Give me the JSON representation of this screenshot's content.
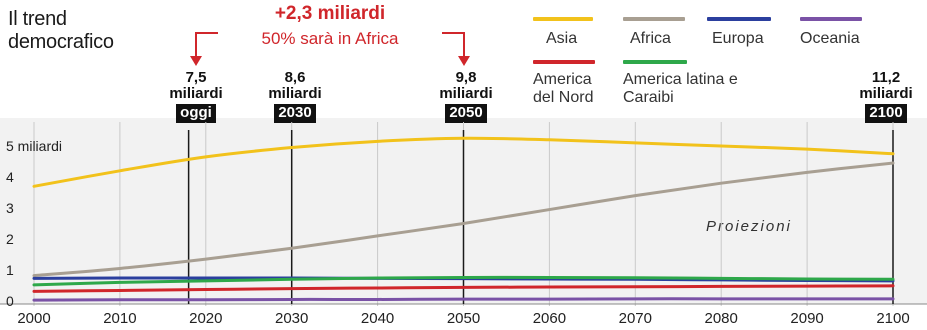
{
  "title": "Il trend democrafico",
  "annotation": {
    "headline": "+2,3 miliardi",
    "subtitle": "50% sarà in Africa"
  },
  "milestones": [
    {
      "year": 2018,
      "value": "7,5",
      "unit": "miliardi",
      "tag": "oggi"
    },
    {
      "year": 2030,
      "value": "8,6",
      "unit": "miliardi",
      "tag": "2030"
    },
    {
      "year": 2050,
      "value": "9,8",
      "unit": "miliardi",
      "tag": "2050"
    },
    {
      "year": 2100,
      "value": "11,2",
      "unit": "miliardi",
      "tag": "2100"
    }
  ],
  "projection_label": "Proiezioni",
  "legend": [
    {
      "name": "Asia",
      "color": "#f2c21b"
    },
    {
      "name": "Africa",
      "color": "#a89f92"
    },
    {
      "name": "Europa",
      "color": "#2b3f9e"
    },
    {
      "name": "Oceania",
      "color": "#7a52a6"
    },
    {
      "name": "America del Nord",
      "color": "#d0262b"
    },
    {
      "name": "America latina e Caraibi",
      "color": "#2ea84a"
    }
  ],
  "chart_data": {
    "type": "line",
    "x": [
      2000,
      2010,
      2020,
      2030,
      2040,
      2050,
      2060,
      2070,
      2080,
      2090,
      2100
    ],
    "xlim": [
      2000,
      2100
    ],
    "ylim": [
      0,
      5
    ],
    "yticks": [
      {
        "value": 0,
        "label": "0"
      },
      {
        "value": 1,
        "label": "1"
      },
      {
        "value": 2,
        "label": "2"
      },
      {
        "value": 3,
        "label": "3"
      },
      {
        "value": 4,
        "label": "4"
      },
      {
        "value": 5,
        "label": "5 miliardi"
      }
    ],
    "xticks": [
      "2000",
      "2010",
      "2020",
      "2030",
      "2040",
      "2050",
      "2060",
      "2070",
      "2080",
      "2090",
      "2100"
    ],
    "grid": "vertical",
    "legend_position": "top-right",
    "series": [
      {
        "name": "Asia",
        "color": "#f2c21b",
        "values": [
          3.7,
          4.2,
          4.65,
          4.95,
          5.15,
          5.25,
          5.2,
          5.1,
          5.0,
          4.9,
          4.75
        ]
      },
      {
        "name": "Africa",
        "color": "#a89f92",
        "values": [
          0.82,
          1.05,
          1.35,
          1.7,
          2.1,
          2.5,
          2.95,
          3.4,
          3.8,
          4.15,
          4.45
        ]
      },
      {
        "name": "Europa",
        "color": "#2b3f9e",
        "values": [
          0.73,
          0.74,
          0.74,
          0.74,
          0.73,
          0.72,
          0.71,
          0.7,
          0.68,
          0.66,
          0.65
        ]
      },
      {
        "name": "America latina e Caraibi",
        "color": "#2ea84a",
        "values": [
          0.52,
          0.6,
          0.65,
          0.7,
          0.74,
          0.76,
          0.76,
          0.75,
          0.73,
          0.71,
          0.7
        ]
      },
      {
        "name": "America del Nord",
        "color": "#d0262b",
        "values": [
          0.31,
          0.34,
          0.37,
          0.4,
          0.42,
          0.44,
          0.45,
          0.46,
          0.47,
          0.48,
          0.49
        ]
      },
      {
        "name": "Oceania",
        "color": "#7a52a6",
        "values": [
          0.03,
          0.04,
          0.04,
          0.05,
          0.05,
          0.06,
          0.06,
          0.07,
          0.07,
          0.07,
          0.07
        ]
      }
    ]
  }
}
